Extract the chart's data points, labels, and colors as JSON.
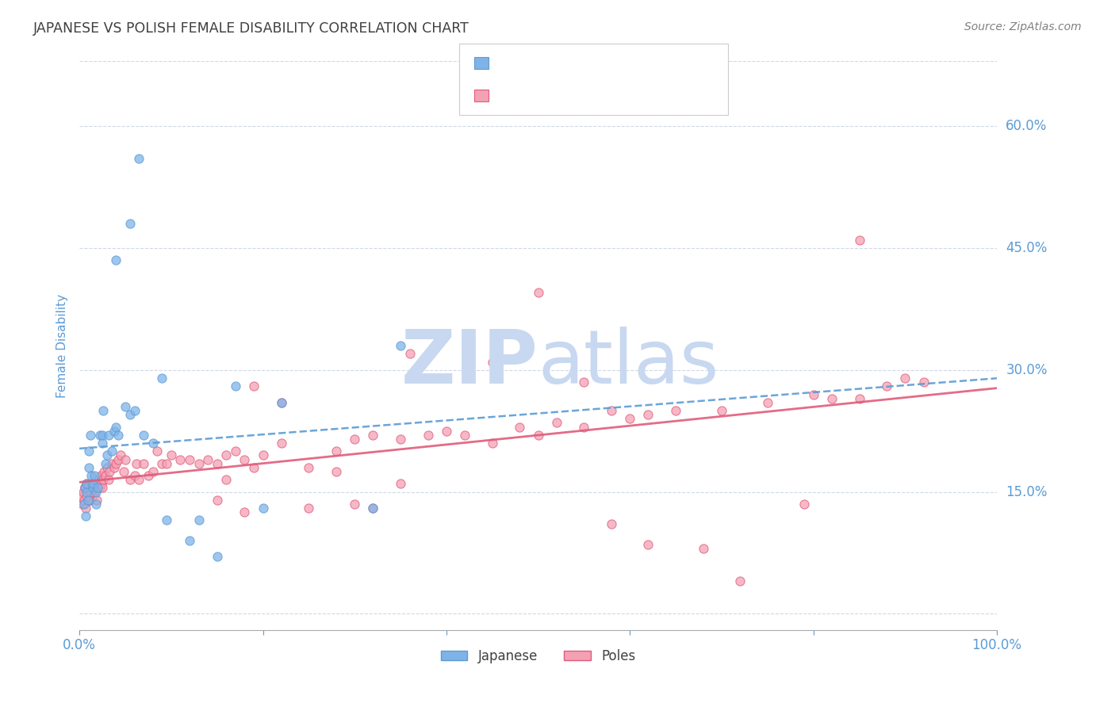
{
  "title": "JAPANESE VS POLISH FEMALE DISABILITY CORRELATION CHART",
  "source": "Source: ZipAtlas.com",
  "ylabel": "Female Disability",
  "xlim": [
    0.0,
    1.0
  ],
  "ylim": [
    -0.02,
    0.68
  ],
  "yticks": [
    0.15,
    0.3,
    0.45,
    0.6
  ],
  "japanese_color": "#7fb3e8",
  "poles_color": "#f4a0b5",
  "japanese_line_color": "#5b9bd5",
  "poles_line_color": "#e05c7a",
  "background_color": "#ffffff",
  "grid_color": "#d0d8e8",
  "watermark_color": "#c8d8f0",
  "title_color": "#404040",
  "source_color": "#808080",
  "axis_label_color": "#5b9bd5",
  "legend_text_color": "#404040",
  "legend_value_color": "#5b9bd5",
  "japanese_x": [
    0.005,
    0.006,
    0.007,
    0.008,
    0.008,
    0.009,
    0.01,
    0.01,
    0.012,
    0.013,
    0.015,
    0.015,
    0.016,
    0.018,
    0.018,
    0.02,
    0.022,
    0.025,
    0.025,
    0.026,
    0.028,
    0.03,
    0.032,
    0.035,
    0.038,
    0.04,
    0.042,
    0.05,
    0.055,
    0.06,
    0.07,
    0.08,
    0.09,
    0.095,
    0.12,
    0.13,
    0.15,
    0.17,
    0.2,
    0.22,
    0.32,
    0.35,
    0.04,
    0.055,
    0.065
  ],
  "japanese_y": [
    0.135,
    0.155,
    0.12,
    0.15,
    0.16,
    0.14,
    0.18,
    0.2,
    0.22,
    0.17,
    0.155,
    0.16,
    0.17,
    0.135,
    0.15,
    0.155,
    0.22,
    0.21,
    0.22,
    0.25,
    0.185,
    0.195,
    0.22,
    0.2,
    0.225,
    0.23,
    0.22,
    0.255,
    0.245,
    0.25,
    0.22,
    0.21,
    0.29,
    0.115,
    0.09,
    0.115,
    0.07,
    0.28,
    0.13,
    0.26,
    0.13,
    0.33,
    0.435,
    0.48,
    0.56
  ],
  "poles_x": [
    0.002,
    0.003,
    0.004,
    0.005,
    0.006,
    0.007,
    0.008,
    0.009,
    0.01,
    0.011,
    0.012,
    0.013,
    0.014,
    0.015,
    0.016,
    0.017,
    0.018,
    0.019,
    0.02,
    0.021,
    0.022,
    0.023,
    0.024,
    0.025,
    0.026,
    0.027,
    0.028,
    0.03,
    0.032,
    0.033,
    0.035,
    0.038,
    0.04,
    0.042,
    0.045,
    0.048,
    0.05,
    0.055,
    0.06,
    0.062,
    0.065,
    0.07,
    0.075,
    0.08,
    0.085,
    0.09,
    0.095,
    0.1,
    0.11,
    0.12,
    0.13,
    0.14,
    0.15,
    0.16,
    0.17,
    0.18,
    0.19,
    0.2,
    0.22,
    0.25,
    0.28,
    0.3,
    0.32,
    0.35,
    0.38,
    0.4,
    0.42,
    0.45,
    0.48,
    0.5,
    0.52,
    0.55,
    0.58,
    0.6,
    0.62,
    0.65,
    0.7,
    0.75,
    0.8,
    0.82,
    0.85,
    0.88,
    0.9,
    0.92,
    0.36,
    0.55,
    0.58,
    0.62,
    0.68,
    0.72,
    0.79,
    0.85,
    0.5,
    0.45,
    0.3,
    0.15,
    0.18,
    0.25,
    0.32,
    0.35,
    0.28,
    0.22,
    0.19,
    0.16,
    0.006,
    0.008,
    0.01,
    0.012
  ],
  "poles_y": [
    0.145,
    0.135,
    0.15,
    0.14,
    0.155,
    0.13,
    0.16,
    0.14,
    0.145,
    0.15,
    0.14,
    0.16,
    0.155,
    0.145,
    0.15,
    0.16,
    0.155,
    0.14,
    0.155,
    0.165,
    0.155,
    0.17,
    0.16,
    0.155,
    0.165,
    0.175,
    0.17,
    0.18,
    0.165,
    0.175,
    0.185,
    0.18,
    0.185,
    0.19,
    0.195,
    0.175,
    0.19,
    0.165,
    0.17,
    0.185,
    0.165,
    0.185,
    0.17,
    0.175,
    0.2,
    0.185,
    0.185,
    0.195,
    0.19,
    0.19,
    0.185,
    0.19,
    0.185,
    0.195,
    0.2,
    0.19,
    0.18,
    0.195,
    0.21,
    0.18,
    0.2,
    0.215,
    0.22,
    0.215,
    0.22,
    0.225,
    0.22,
    0.21,
    0.23,
    0.22,
    0.235,
    0.23,
    0.25,
    0.24,
    0.245,
    0.25,
    0.25,
    0.26,
    0.27,
    0.265,
    0.265,
    0.28,
    0.29,
    0.285,
    0.32,
    0.285,
    0.11,
    0.085,
    0.08,
    0.04,
    0.135,
    0.46,
    0.395,
    0.31,
    0.135,
    0.14,
    0.125,
    0.13,
    0.13,
    0.16,
    0.175,
    0.26,
    0.28,
    0.165,
    0.155,
    0.145,
    0.14,
    0.15
  ]
}
